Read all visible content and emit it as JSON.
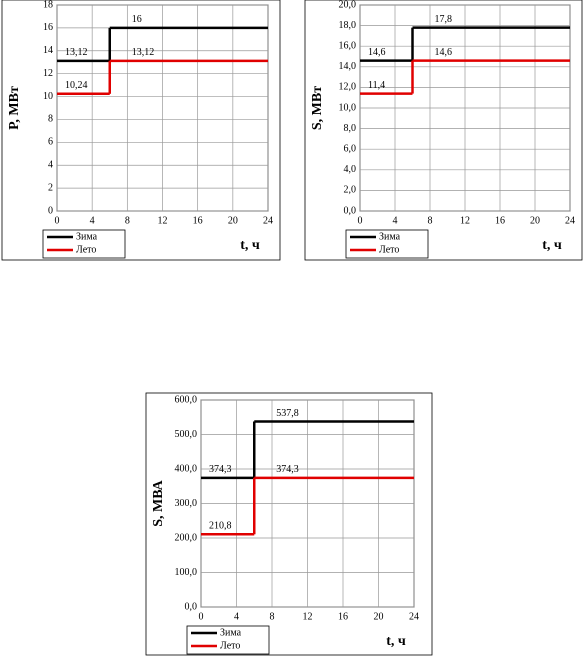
{
  "chart_data": [
    {
      "type": "step",
      "ylabel": "P, МВт",
      "xlabel": "t, ч",
      "x": [
        0,
        6
      ],
      "xlim": [
        0,
        24
      ],
      "xticks": [
        0,
        4,
        8,
        12,
        16,
        20,
        24
      ],
      "ylim": [
        0,
        18
      ],
      "yticks": [
        0,
        2,
        4,
        6,
        8,
        10,
        12,
        14,
        16,
        18
      ],
      "grid": true,
      "series": [
        {
          "name": "Зима",
          "color": "#000000",
          "values": [
            13.12,
            16
          ],
          "value_labels": [
            "13,12",
            "16"
          ]
        },
        {
          "name": "Лето",
          "color": "#e00000",
          "values": [
            10.24,
            13.12
          ],
          "value_labels": [
            "10,24",
            "13,12"
          ]
        }
      ]
    },
    {
      "type": "step",
      "ylabel": "S, МВт",
      "xlabel": "t, ч",
      "x": [
        0,
        6
      ],
      "xlim": [
        0,
        24
      ],
      "xticks": [
        0,
        4,
        8,
        12,
        16,
        20,
        24
      ],
      "ylim": [
        0,
        20
      ],
      "yticks": [
        {
          "value": 0,
          "label": "0,0"
        },
        {
          "value": 2,
          "label": "2,0"
        },
        {
          "value": 4,
          "label": "4,0"
        },
        {
          "value": 6,
          "label": "6,0"
        },
        {
          "value": 8,
          "label": "8,0"
        },
        {
          "value": 10,
          "label": "10,0"
        },
        {
          "value": 12,
          "label": "12,0"
        },
        {
          "value": 14,
          "label": "14,0"
        },
        {
          "value": 16,
          "label": "16,0"
        },
        {
          "value": 18,
          "label": "18,0"
        },
        {
          "value": 20,
          "label": "20,0"
        }
      ],
      "grid": true,
      "series": [
        {
          "name": "Зима",
          "color": "#000000",
          "values": [
            14.6,
            17.8
          ],
          "value_labels": [
            "14,6",
            "17,8"
          ]
        },
        {
          "name": "Лето",
          "color": "#e00000",
          "values": [
            11.4,
            14.6
          ],
          "value_labels": [
            "11,4",
            "14,6"
          ]
        }
      ]
    },
    {
      "type": "step",
      "ylabel": "S, МВА",
      "xlabel": "t, ч",
      "x": [
        0,
        6
      ],
      "xlim": [
        0,
        24
      ],
      "xticks": [
        0,
        4,
        8,
        12,
        16,
        20,
        24
      ],
      "ylim": [
        0,
        600
      ],
      "yticks": [
        {
          "value": 0,
          "label": "0,0"
        },
        {
          "value": 100,
          "label": "100,0"
        },
        {
          "value": 200,
          "label": "200,0"
        },
        {
          "value": 300,
          "label": "300,0"
        },
        {
          "value": 400,
          "label": "400,0"
        },
        {
          "value": 500,
          "label": "500,0"
        },
        {
          "value": 600,
          "label": "600,0"
        }
      ],
      "grid": true,
      "series": [
        {
          "name": "Зима",
          "color": "#000000",
          "values": [
            374.3,
            537.8
          ],
          "value_labels": [
            "374,3",
            "537,8"
          ]
        },
        {
          "name": "Лето",
          "color": "#e00000",
          "values": [
            210.8,
            374.3
          ],
          "value_labels": [
            "210,8",
            "374,3"
          ]
        }
      ]
    }
  ]
}
